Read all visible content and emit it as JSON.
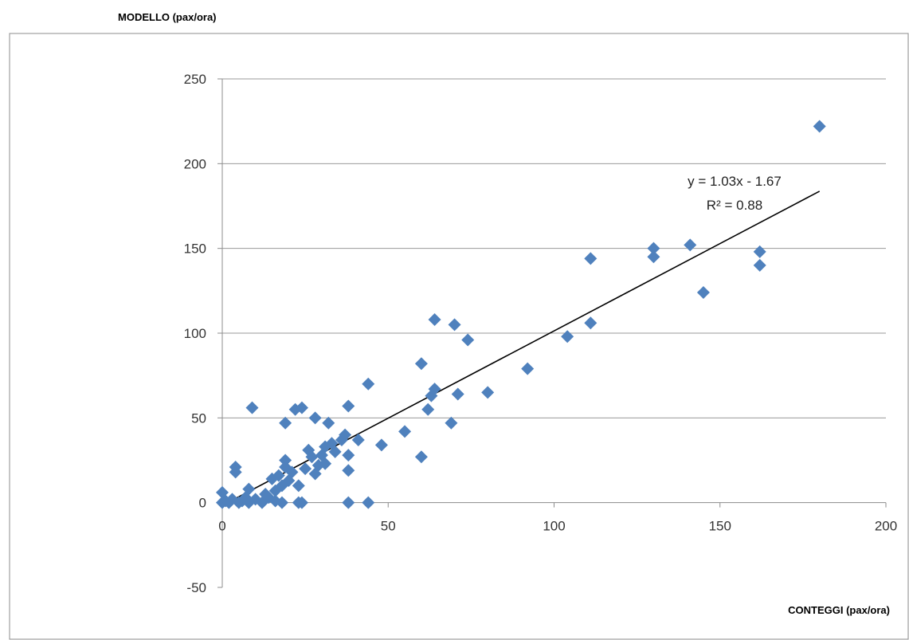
{
  "chart_data": {
    "type": "scatter",
    "title": "",
    "ylabel": "MODELLO (pax/ora)",
    "xlabel": "CONTEGGI (pax/ora)",
    "xlim": [
      0,
      200
    ],
    "ylim": [
      -50,
      250
    ],
    "x_ticks": [
      0,
      50,
      100,
      150,
      200
    ],
    "y_ticks": [
      -50,
      0,
      50,
      100,
      150,
      200,
      250
    ],
    "x_tick_labels": [
      "0",
      "50",
      "100",
      "150",
      "200"
    ],
    "y_tick_labels": [
      "-50",
      "0",
      "50",
      "100",
      "150",
      "200",
      "250"
    ],
    "grid": "horizontal",
    "marker_color": "#4f81bd",
    "trendline_color": "#000000",
    "trendline": {
      "slope": 1.03,
      "intercept": -1.67,
      "x_range": [
        0,
        180
      ],
      "equation_label": "y = 1.03x - 1.67",
      "r2_label": "R² = 0.88"
    },
    "points": [
      {
        "x": 0,
        "y": 6
      },
      {
        "x": 0,
        "y": 0
      },
      {
        "x": 1,
        "y": 1
      },
      {
        "x": 2,
        "y": 0
      },
      {
        "x": 3,
        "y": 2
      },
      {
        "x": 4,
        "y": 21
      },
      {
        "x": 4,
        "y": 18
      },
      {
        "x": 5,
        "y": 0
      },
      {
        "x": 6,
        "y": 1
      },
      {
        "x": 7,
        "y": 3
      },
      {
        "x": 8,
        "y": 8
      },
      {
        "x": 8,
        "y": 0
      },
      {
        "x": 9,
        "y": 56
      },
      {
        "x": 10,
        "y": 2
      },
      {
        "x": 12,
        "y": 0
      },
      {
        "x": 13,
        "y": 5
      },
      {
        "x": 14,
        "y": 3
      },
      {
        "x": 15,
        "y": 14
      },
      {
        "x": 16,
        "y": 7
      },
      {
        "x": 16,
        "y": 1
      },
      {
        "x": 17,
        "y": 16
      },
      {
        "x": 18,
        "y": 0
      },
      {
        "x": 18,
        "y": 10
      },
      {
        "x": 19,
        "y": 25
      },
      {
        "x": 19,
        "y": 21
      },
      {
        "x": 19,
        "y": 47
      },
      {
        "x": 20,
        "y": 13
      },
      {
        "x": 21,
        "y": 18
      },
      {
        "x": 22,
        "y": 55
      },
      {
        "x": 23,
        "y": 0
      },
      {
        "x": 23,
        "y": 10
      },
      {
        "x": 24,
        "y": 56
      },
      {
        "x": 24,
        "y": 0
      },
      {
        "x": 25,
        "y": 20
      },
      {
        "x": 26,
        "y": 31
      },
      {
        "x": 27,
        "y": 27
      },
      {
        "x": 28,
        "y": 17
      },
      {
        "x": 28,
        "y": 50
      },
      {
        "x": 29,
        "y": 22
      },
      {
        "x": 30,
        "y": 28
      },
      {
        "x": 31,
        "y": 23
      },
      {
        "x": 31,
        "y": 33
      },
      {
        "x": 32,
        "y": 47
      },
      {
        "x": 33,
        "y": 35
      },
      {
        "x": 34,
        "y": 30
      },
      {
        "x": 36,
        "y": 37
      },
      {
        "x": 37,
        "y": 40
      },
      {
        "x": 38,
        "y": 28
      },
      {
        "x": 38,
        "y": 19
      },
      {
        "x": 38,
        "y": 57
      },
      {
        "x": 38,
        "y": 0
      },
      {
        "x": 41,
        "y": 37
      },
      {
        "x": 44,
        "y": 70
      },
      {
        "x": 44,
        "y": 0
      },
      {
        "x": 48,
        "y": 34
      },
      {
        "x": 55,
        "y": 42
      },
      {
        "x": 60,
        "y": 82
      },
      {
        "x": 60,
        "y": 27
      },
      {
        "x": 62,
        "y": 55
      },
      {
        "x": 63,
        "y": 63
      },
      {
        "x": 64,
        "y": 67
      },
      {
        "x": 64,
        "y": 108
      },
      {
        "x": 69,
        "y": 47
      },
      {
        "x": 70,
        "y": 105
      },
      {
        "x": 71,
        "y": 64
      },
      {
        "x": 74,
        "y": 96
      },
      {
        "x": 80,
        "y": 65
      },
      {
        "x": 92,
        "y": 79
      },
      {
        "x": 104,
        "y": 98
      },
      {
        "x": 111,
        "y": 106
      },
      {
        "x": 111,
        "y": 144
      },
      {
        "x": 130,
        "y": 150
      },
      {
        "x": 130,
        "y": 145
      },
      {
        "x": 141,
        "y": 152
      },
      {
        "x": 145,
        "y": 124
      },
      {
        "x": 162,
        "y": 148
      },
      {
        "x": 162,
        "y": 140
      },
      {
        "x": 180,
        "y": 222
      }
    ]
  }
}
